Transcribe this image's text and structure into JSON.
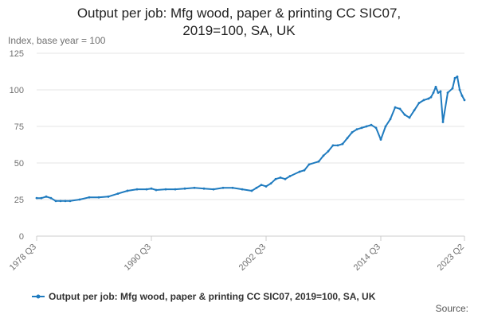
{
  "chart_data": {
    "type": "line",
    "title": "Output per job: Mfg wood, paper & printing CC SIC07, 2019=100, SA, UK",
    "ylabel": "Index, base year = 100",
    "ylim": [
      0,
      125
    ],
    "y_ticks": [
      "0",
      "25",
      "50",
      "75",
      "100",
      "125"
    ],
    "x_ticks": [
      "1978 Q3",
      "1990 Q3",
      "2002 Q3",
      "2014 Q3",
      "2023 Q2"
    ],
    "grid": true,
    "legend_position": "bottom",
    "source_label": "Source:",
    "color": "#1f7bbf",
    "series": [
      {
        "name": "Output per job: Mfg wood, paper & printing CC SIC07, 2019=100, SA, UK",
        "x": [
          1978.5,
          1979.0,
          1979.5,
          1980.0,
          1980.5,
          1981.0,
          1981.5,
          1982.0,
          1983.0,
          1984.0,
          1985.0,
          1986.0,
          1987.0,
          1988.0,
          1989.0,
          1990.0,
          1990.5,
          1991.0,
          1992.0,
          1993.0,
          1994.0,
          1995.0,
          1996.0,
          1997.0,
          1998.0,
          1999.0,
          2000.0,
          2001.0,
          2001.5,
          2002.0,
          2002.5,
          2003.0,
          2003.5,
          2004.0,
          2004.5,
          2005.0,
          2006.0,
          2006.5,
          2007.0,
          2008.0,
          2008.5,
          2009.0,
          2009.5,
          2010.0,
          2010.5,
          2011.0,
          2011.5,
          2012.0,
          2012.5,
          2013.0,
          2013.5,
          2014.0,
          2014.5,
          2015.0,
          2015.5,
          2016.0,
          2016.5,
          2017.0,
          2017.5,
          2018.0,
          2018.5,
          2019.0,
          2019.5,
          2019.75,
          2020.0,
          2020.25,
          2020.5,
          2020.75,
          2021.0,
          2021.5,
          2022.0,
          2022.25,
          2022.5,
          2022.75,
          2023.0,
          2023.25
        ],
        "values": [
          26,
          26,
          27,
          26,
          24,
          24,
          24,
          24,
          25,
          26.5,
          26.5,
          27,
          29,
          31,
          32,
          32,
          32.5,
          31.5,
          32,
          32,
          32.5,
          33,
          32.5,
          32,
          33,
          33,
          32,
          31,
          33,
          35,
          34,
          36,
          39,
          40,
          39,
          41,
          44,
          45,
          49,
          51,
          55,
          58,
          62,
          62,
          63,
          67,
          71,
          73,
          74,
          75,
          76,
          74,
          66,
          75,
          80,
          88,
          87,
          83,
          81,
          86,
          91,
          93,
          94,
          95,
          98,
          102,
          98,
          99,
          78,
          98,
          101,
          108,
          109,
          100,
          96,
          93
        ]
      }
    ]
  }
}
